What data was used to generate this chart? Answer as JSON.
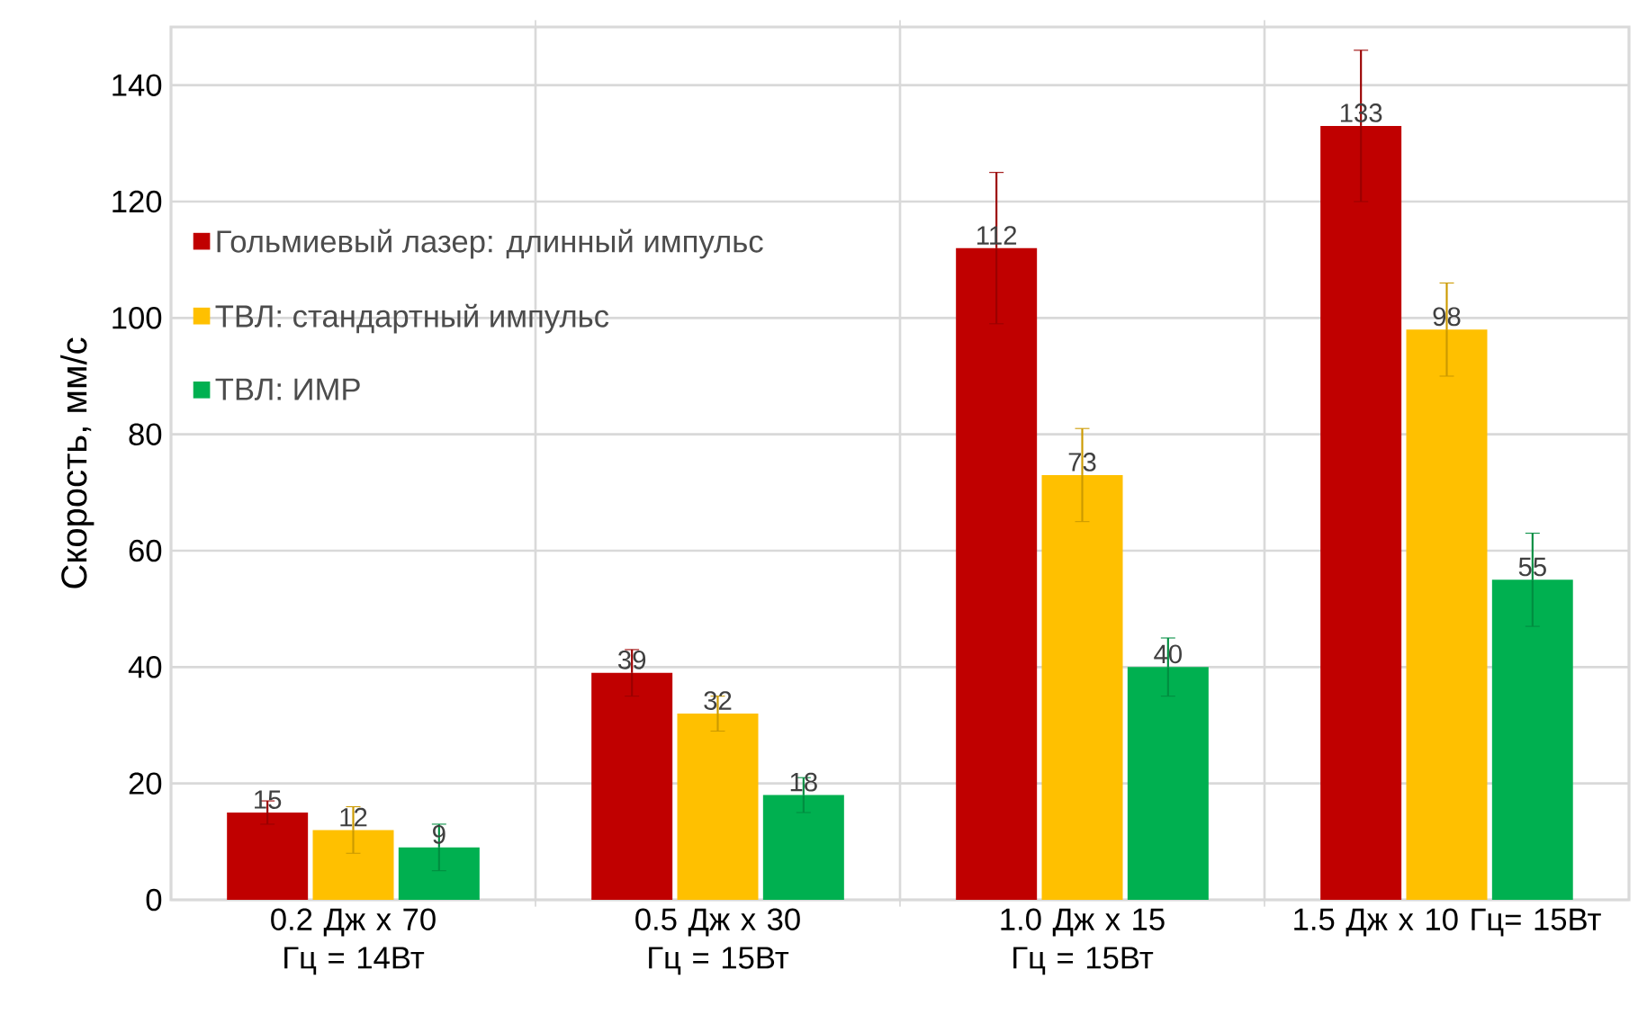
{
  "chart_data": {
    "type": "bar",
    "ylabel": "Скорость, мм/с",
    "categories": [
      "0.2 Дж x 70 Гц = 14Вт",
      "0.5 Дж x 30 Гц = 15Вт",
      "1.0 Дж x 15 Гц = 15Вт",
      "1.5 Дж x 10 Гц= 15Вт"
    ],
    "series": [
      {
        "name": "Гольмиевый лазер: длинный импульс",
        "color": "#c00000",
        "values": [
          15,
          39,
          112,
          133
        ],
        "errors": [
          2,
          4,
          13,
          13
        ]
      },
      {
        "name": "ТВЛ: стандартный импульс",
        "color": "#ffc000",
        "values": [
          12,
          32,
          73,
          98
        ],
        "errors": [
          4,
          3,
          8,
          8
        ]
      },
      {
        "name": "ТВЛ: ИМР",
        "color": "#00b050",
        "values": [
          9,
          18,
          40,
          55
        ],
        "errors": [
          4,
          3,
          5,
          8
        ]
      }
    ],
    "ylim": [
      0,
      150
    ],
    "yticks": [
      0,
      20,
      40,
      60,
      80,
      100,
      120,
      140
    ],
    "grid": true,
    "legend": "left",
    "data_labels": true
  }
}
